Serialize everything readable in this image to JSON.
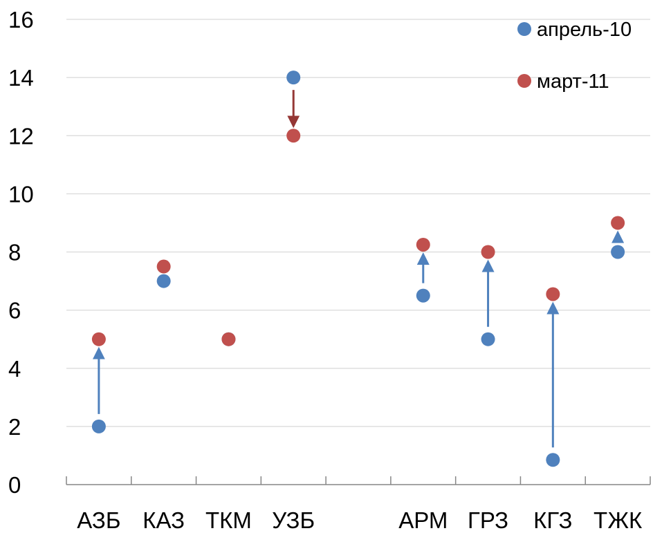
{
  "chart_data": {
    "type": "scatter",
    "title": "",
    "xlabel": "",
    "ylabel": "",
    "categories": [
      "АЗБ",
      "КАЗ",
      "ТКМ",
      "УЗБ",
      "",
      "АРМ",
      "ГРЗ",
      "КГЗ",
      "ТЖК"
    ],
    "ylim": [
      0,
      16
    ],
    "yticks": [
      0,
      2,
      4,
      6,
      8,
      10,
      12,
      14,
      16
    ],
    "grid": true,
    "legend_position": "top-right",
    "series": [
      {
        "name": "апрель-10",
        "color": "#4F81BD",
        "values": [
          2,
          7,
          5,
          14,
          null,
          6.5,
          5,
          0.85,
          8
        ]
      },
      {
        "name": "март-11",
        "color": "#C0504D",
        "values": [
          5,
          7.5,
          5,
          12,
          null,
          8.25,
          8,
          6.55,
          9
        ]
      }
    ],
    "arrows": [
      {
        "category": "АЗБ",
        "from": 2,
        "to": 5,
        "color": "#4F81BD"
      },
      {
        "category": "УЗБ",
        "from": 14,
        "to": 12,
        "color": "#953735"
      },
      {
        "category": "АРМ",
        "from": 6.5,
        "to": 8.25,
        "color": "#4F81BD"
      },
      {
        "category": "ГРЗ",
        "from": 5,
        "to": 8,
        "color": "#4F81BD"
      },
      {
        "category": "КГЗ",
        "from": 0.85,
        "to": 6.55,
        "color": "#4F81BD"
      },
      {
        "category": "ТЖК",
        "from": 8,
        "to": 9,
        "color": "#4F81BD"
      }
    ]
  }
}
